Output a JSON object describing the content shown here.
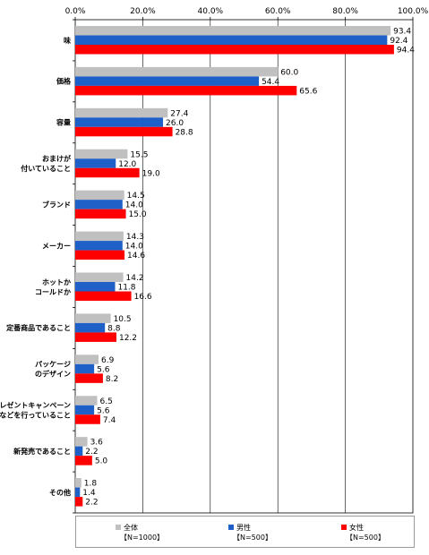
{
  "chart_data": {
    "type": "bar",
    "orientation": "horizontal",
    "xlim": [
      0,
      100
    ],
    "x_ticks": [
      "0.0%",
      "20.0%",
      "40.0%",
      "60.0%",
      "80.0%",
      "100.0%"
    ],
    "grid": true,
    "legend_position": "bottom",
    "categories": [
      [
        "味"
      ],
      [
        "価格"
      ],
      [
        "容量"
      ],
      [
        "おまけが",
        "付いていること"
      ],
      [
        "ブランド"
      ],
      [
        "メーカー"
      ],
      [
        "ホットか",
        "コールドか"
      ],
      [
        "定番商品であること"
      ],
      [
        "パッケージ",
        "のデザイン"
      ],
      [
        "プレゼントキャンペーン",
        "などを行っていること"
      ],
      [
        "新発売であること"
      ],
      [
        "その他"
      ]
    ],
    "series": [
      {
        "name": "全体",
        "note": "【N=1000】",
        "color": "#c0c0c0",
        "values": [
          93.4,
          60.0,
          27.4,
          15.5,
          14.5,
          14.3,
          14.2,
          10.5,
          6.9,
          6.5,
          3.6,
          1.8
        ],
        "labels": [
          "93.4",
          "60.0",
          "27.4",
          "15.5",
          "14.5",
          "14.3",
          "14.2",
          "10.5",
          "6.9",
          "6.5",
          "3.6",
          "1.8"
        ]
      },
      {
        "name": "男性",
        "note": "【N=500】",
        "color": "#1f5fc8",
        "values": [
          92.4,
          54.4,
          26.0,
          12.0,
          14.0,
          14.0,
          11.8,
          8.8,
          5.6,
          5.6,
          2.2,
          1.4
        ],
        "labels": [
          "92.4",
          "54.4",
          "26.0",
          "12.0",
          "14.0",
          "14.0",
          "11.8",
          "8.8",
          "5.6",
          "5.6",
          "2.2",
          "1.4"
        ]
      },
      {
        "name": "女性",
        "note": "【N=500】",
        "color": "#ff0000",
        "values": [
          94.4,
          65.6,
          28.8,
          19.0,
          15.0,
          14.6,
          16.6,
          12.2,
          8.2,
          7.4,
          5.0,
          2.2
        ],
        "labels": [
          "94.4",
          "65.6",
          "28.8",
          "19.0",
          "15.0",
          "14.6",
          "16.6",
          "12.2",
          "8.2",
          "7.4",
          "5.0",
          "2.2"
        ]
      }
    ]
  },
  "legend": {
    "items": [
      {
        "name": "全体",
        "note": "【N=1000】",
        "color": "#c0c0c0"
      },
      {
        "name": "男性",
        "note": "【N=500】",
        "color": "#1f5fc8"
      },
      {
        "name": "女性",
        "note": "【N=500】",
        "color": "#ff0000"
      }
    ]
  }
}
